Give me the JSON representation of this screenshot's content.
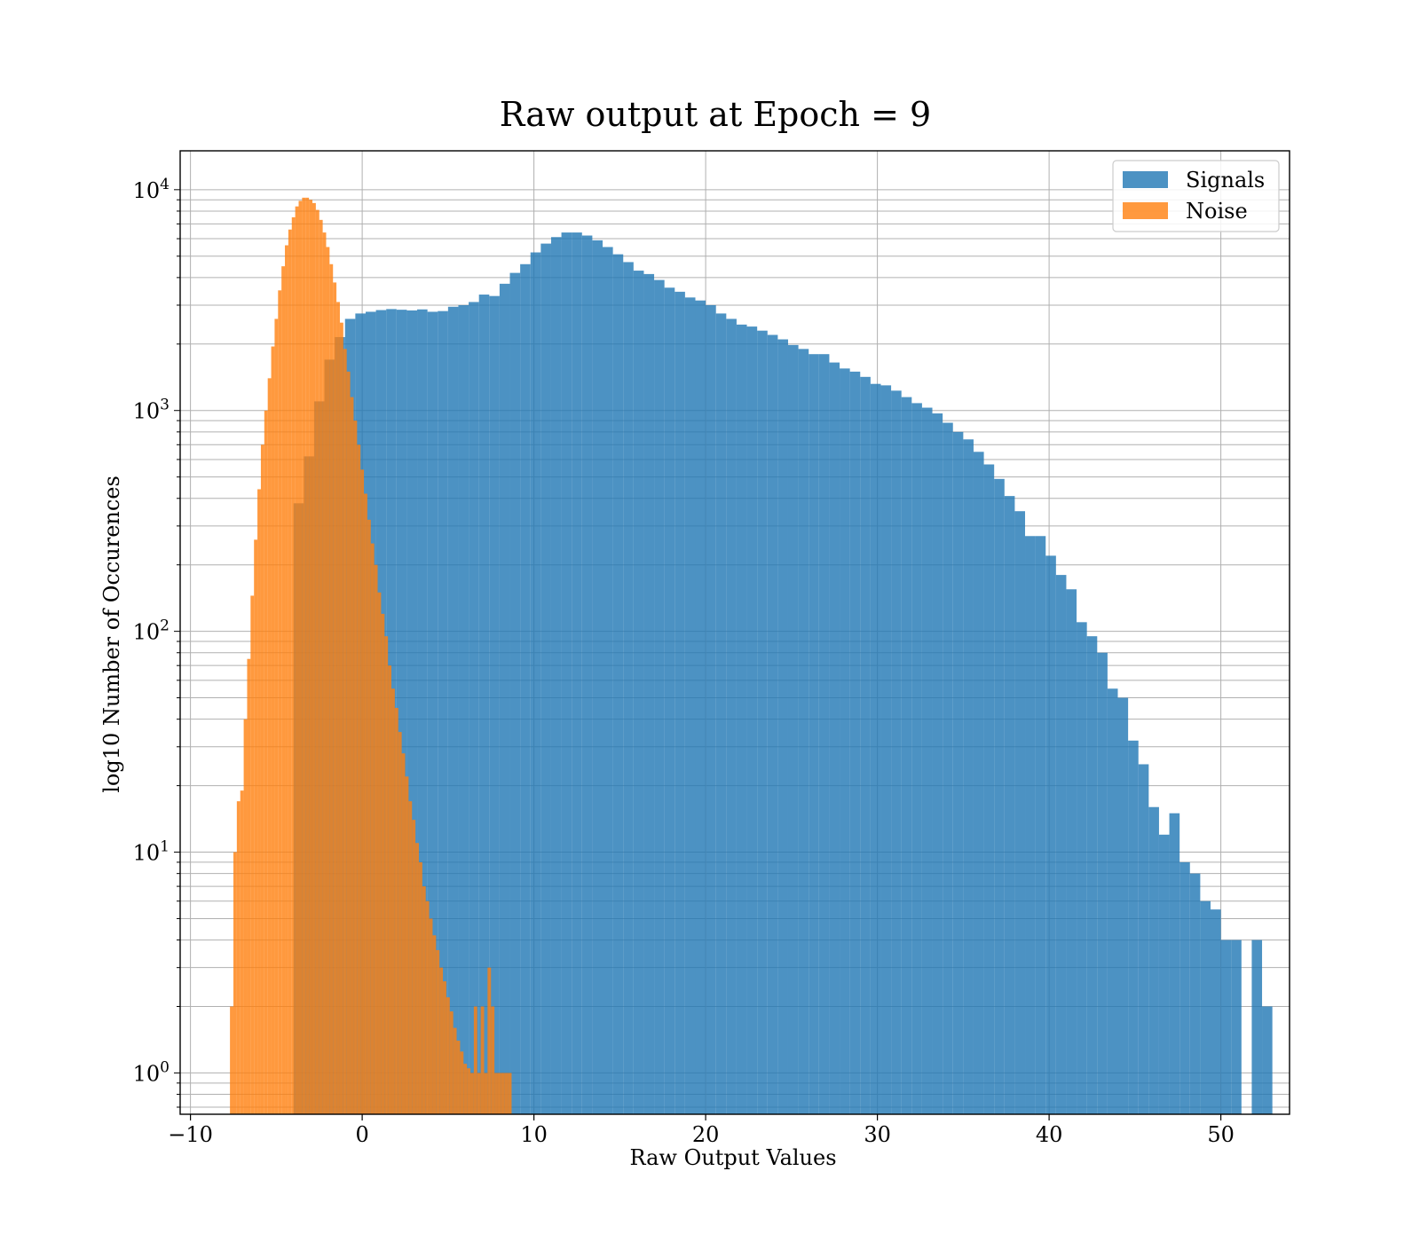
{
  "chart_data": {
    "type": "histogram",
    "title": "Raw output at Epoch = 9",
    "xlabel": "Raw Output Values",
    "ylabel": "log10 Number of Occurences",
    "xlim": [
      -10.6,
      54
    ],
    "ylim": [
      0.65,
      15000
    ],
    "yscale": "log",
    "grid": true,
    "legend_position": "top-right",
    "x_ticks": [
      -10,
      0,
      10,
      20,
      30,
      40,
      50
    ],
    "x_tick_labels": [
      "−10",
      "0",
      "10",
      "20",
      "30",
      "40",
      "50"
    ],
    "y_ticks": [
      {
        "value": 1,
        "base": "10",
        "exp": "0"
      },
      {
        "value": 10,
        "base": "10",
        "exp": "1"
      },
      {
        "value": 100,
        "base": "10",
        "exp": "2"
      },
      {
        "value": 1000,
        "base": "10",
        "exp": "3"
      },
      {
        "value": 10000,
        "base": "10",
        "exp": "4"
      }
    ],
    "series": [
      {
        "name": "Signals",
        "color": "#1f77b4",
        "opacity": 0.8,
        "bins": [
          [
            -4.0,
            -3.4,
            380
          ],
          [
            -3.4,
            -2.8,
            620
          ],
          [
            -2.8,
            -2.2,
            1100
          ],
          [
            -2.2,
            -1.6,
            1700
          ],
          [
            -1.6,
            -1.0,
            2150
          ],
          [
            -1.0,
            -0.4,
            2600
          ],
          [
            -0.4,
            0.2,
            2750
          ],
          [
            0.2,
            0.8,
            2800
          ],
          [
            0.8,
            1.4,
            2850
          ],
          [
            1.4,
            2.0,
            2880
          ],
          [
            2.0,
            2.6,
            2860
          ],
          [
            2.6,
            3.2,
            2840
          ],
          [
            3.2,
            3.8,
            2870
          ],
          [
            3.8,
            4.4,
            2800
          ],
          [
            4.4,
            5.0,
            2820
          ],
          [
            5.0,
            5.6,
            2950
          ],
          [
            5.6,
            6.2,
            3000
          ],
          [
            6.2,
            6.8,
            3100
          ],
          [
            6.8,
            7.4,
            3350
          ],
          [
            7.4,
            8.0,
            3300
          ],
          [
            8.0,
            8.6,
            3750
          ],
          [
            8.6,
            9.2,
            4200
          ],
          [
            9.2,
            9.8,
            4600
          ],
          [
            9.8,
            10.4,
            5200
          ],
          [
            10.4,
            11.0,
            5700
          ],
          [
            11.0,
            11.6,
            6100
          ],
          [
            11.6,
            12.2,
            6400
          ],
          [
            12.2,
            12.8,
            6400
          ],
          [
            12.8,
            13.4,
            6200
          ],
          [
            13.4,
            14.0,
            5900
          ],
          [
            14.0,
            14.6,
            5500
          ],
          [
            14.6,
            15.2,
            5100
          ],
          [
            15.2,
            15.8,
            4700
          ],
          [
            15.8,
            16.4,
            4300
          ],
          [
            16.4,
            17.0,
            4150
          ],
          [
            17.0,
            17.6,
            3900
          ],
          [
            17.6,
            18.2,
            3600
          ],
          [
            18.2,
            18.8,
            3450
          ],
          [
            18.8,
            19.4,
            3250
          ],
          [
            19.4,
            20.0,
            3150
          ],
          [
            20.0,
            20.6,
            3000
          ],
          [
            20.6,
            21.2,
            2750
          ],
          [
            21.2,
            21.8,
            2600
          ],
          [
            21.8,
            22.4,
            2450
          ],
          [
            22.4,
            23.0,
            2400
          ],
          [
            23.0,
            23.6,
            2300
          ],
          [
            23.6,
            24.2,
            2200
          ],
          [
            24.2,
            24.8,
            2100
          ],
          [
            24.8,
            25.4,
            1980
          ],
          [
            25.4,
            26.0,
            1900
          ],
          [
            26.0,
            26.6,
            1800
          ],
          [
            26.6,
            27.2,
            1800
          ],
          [
            27.2,
            27.8,
            1650
          ],
          [
            27.8,
            28.4,
            1550
          ],
          [
            28.4,
            29.0,
            1500
          ],
          [
            29.0,
            29.6,
            1420
          ],
          [
            29.6,
            30.2,
            1320
          ],
          [
            30.2,
            30.8,
            1300
          ],
          [
            30.8,
            31.4,
            1230
          ],
          [
            31.4,
            32.0,
            1150
          ],
          [
            32.0,
            32.6,
            1080
          ],
          [
            32.6,
            33.2,
            1030
          ],
          [
            33.2,
            33.8,
            970
          ],
          [
            33.8,
            34.4,
            880
          ],
          [
            34.4,
            35.0,
            800
          ],
          [
            35.0,
            35.6,
            740
          ],
          [
            35.6,
            36.2,
            650
          ],
          [
            36.2,
            36.8,
            570
          ],
          [
            36.8,
            37.4,
            490
          ],
          [
            37.4,
            38.0,
            410
          ],
          [
            38.0,
            38.6,
            350
          ],
          [
            38.6,
            39.2,
            270
          ],
          [
            39.2,
            39.8,
            270
          ],
          [
            39.8,
            40.4,
            220
          ],
          [
            40.4,
            41.0,
            180
          ],
          [
            41.0,
            41.6,
            155
          ],
          [
            41.6,
            42.2,
            110
          ],
          [
            42.2,
            42.8,
            95
          ],
          [
            42.8,
            43.4,
            80
          ],
          [
            43.4,
            44.0,
            55
          ],
          [
            44.0,
            44.6,
            50
          ],
          [
            44.6,
            45.2,
            32
          ],
          [
            45.2,
            45.8,
            25
          ],
          [
            45.8,
            46.4,
            16
          ],
          [
            46.4,
            47.0,
            12
          ],
          [
            47.0,
            47.6,
            15
          ],
          [
            47.6,
            48.2,
            9
          ],
          [
            48.2,
            48.8,
            8
          ],
          [
            48.8,
            49.4,
            6
          ],
          [
            49.4,
            50.0,
            5.5
          ],
          [
            50.0,
            50.6,
            4
          ],
          [
            50.6,
            51.2,
            4
          ],
          [
            51.2,
            51.8,
            0
          ],
          [
            51.8,
            52.4,
            4
          ],
          [
            52.4,
            53.0,
            2
          ]
        ]
      },
      {
        "name": "Noise",
        "color": "#ff7f0e",
        "opacity": 0.8,
        "bins": [
          [
            -7.7,
            -7.5,
            2
          ],
          [
            -7.5,
            -7.3,
            10
          ],
          [
            -7.3,
            -7.1,
            17
          ],
          [
            -7.1,
            -6.9,
            19
          ],
          [
            -6.9,
            -6.7,
            40
          ],
          [
            -6.7,
            -6.5,
            75
          ],
          [
            -6.5,
            -6.3,
            145
          ],
          [
            -6.3,
            -6.1,
            260
          ],
          [
            -6.1,
            -5.9,
            440
          ],
          [
            -5.9,
            -5.7,
            700
          ],
          [
            -5.7,
            -5.5,
            1000
          ],
          [
            -5.5,
            -5.3,
            1400
          ],
          [
            -5.3,
            -5.1,
            1950
          ],
          [
            -5.1,
            -4.9,
            2600
          ],
          [
            -4.9,
            -4.7,
            3500
          ],
          [
            -4.7,
            -4.5,
            4500
          ],
          [
            -4.5,
            -4.3,
            5600
          ],
          [
            -4.3,
            -4.1,
            6600
          ],
          [
            -4.1,
            -3.9,
            7500
          ],
          [
            -3.9,
            -3.7,
            8400
          ],
          [
            -3.7,
            -3.5,
            8900
          ],
          [
            -3.5,
            -3.3,
            9200
          ],
          [
            -3.3,
            -3.1,
            9200
          ],
          [
            -3.1,
            -2.9,
            9000
          ],
          [
            -2.9,
            -2.7,
            8700
          ],
          [
            -2.7,
            -2.5,
            8100
          ],
          [
            -2.5,
            -2.3,
            7300
          ],
          [
            -2.3,
            -2.1,
            6400
          ],
          [
            -2.1,
            -1.9,
            5500
          ],
          [
            -1.9,
            -1.7,
            4600
          ],
          [
            -1.7,
            -1.5,
            3800
          ],
          [
            -1.5,
            -1.3,
            3100
          ],
          [
            -1.3,
            -1.1,
            2500
          ],
          [
            -1.1,
            -0.9,
            1900
          ],
          [
            -0.9,
            -0.7,
            1500
          ],
          [
            -0.7,
            -0.5,
            1150
          ],
          [
            -0.5,
            -0.3,
            900
          ],
          [
            -0.3,
            -0.1,
            700
          ],
          [
            -0.1,
            0.1,
            540
          ],
          [
            0.1,
            0.3,
            420
          ],
          [
            0.3,
            0.5,
            320
          ],
          [
            0.5,
            0.7,
            250
          ],
          [
            0.7,
            0.9,
            200
          ],
          [
            0.9,
            1.1,
            150
          ],
          [
            1.1,
            1.3,
            120
          ],
          [
            1.3,
            1.5,
            95
          ],
          [
            1.5,
            1.7,
            70
          ],
          [
            1.7,
            1.9,
            55
          ],
          [
            1.9,
            2.1,
            45
          ],
          [
            2.1,
            2.3,
            35
          ],
          [
            2.3,
            2.5,
            28
          ],
          [
            2.5,
            2.7,
            22
          ],
          [
            2.7,
            2.9,
            17
          ],
          [
            2.9,
            3.1,
            14
          ],
          [
            3.1,
            3.3,
            11
          ],
          [
            3.3,
            3.5,
            9
          ],
          [
            3.5,
            3.7,
            7
          ],
          [
            3.7,
            3.9,
            6
          ],
          [
            3.9,
            4.1,
            5
          ],
          [
            4.1,
            4.3,
            4.2
          ],
          [
            4.3,
            4.5,
            3.6
          ],
          [
            4.5,
            4.7,
            3
          ],
          [
            4.7,
            4.9,
            2.6
          ],
          [
            4.9,
            5.1,
            2.2
          ],
          [
            5.1,
            5.3,
            1.9
          ],
          [
            5.3,
            5.5,
            1.6
          ],
          [
            5.5,
            5.7,
            1.4
          ],
          [
            5.7,
            5.9,
            1.25
          ],
          [
            5.9,
            6.1,
            1.1
          ],
          [
            6.1,
            6.3,
            1.05
          ],
          [
            6.3,
            6.5,
            1.0
          ],
          [
            6.5,
            6.7,
            2
          ],
          [
            6.7,
            6.9,
            1
          ],
          [
            6.9,
            7.1,
            2
          ],
          [
            7.1,
            7.3,
            1
          ],
          [
            7.3,
            7.5,
            3
          ],
          [
            7.5,
            7.7,
            2
          ],
          [
            7.7,
            7.9,
            1
          ],
          [
            7.9,
            8.1,
            1
          ],
          [
            8.1,
            8.3,
            1
          ],
          [
            8.3,
            8.5,
            1
          ],
          [
            8.5,
            8.7,
            1
          ]
        ]
      }
    ]
  }
}
